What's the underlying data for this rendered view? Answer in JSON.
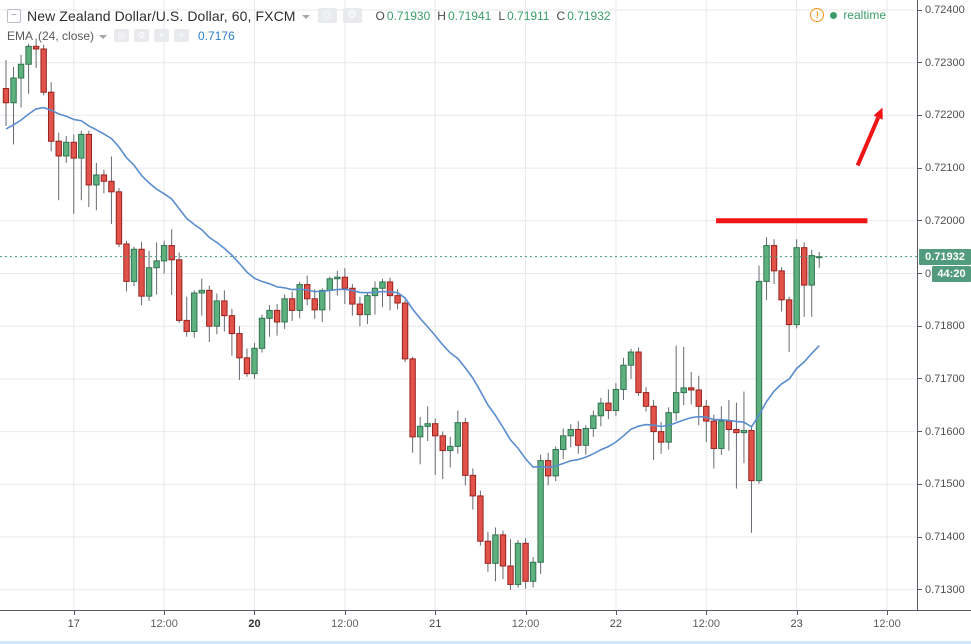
{
  "header": {
    "symbol_title": "New Zealand Dollar/U.S. Dollar, 60, FXCM",
    "ohlc": {
      "o_label": "O",
      "o": "0.71930",
      "h_label": "H",
      "h": "0.71941",
      "l_label": "L",
      "l": "0.71911",
      "c_label": "C",
      "c": "0.71932"
    },
    "realtime_label": "realtime"
  },
  "indicator": {
    "name": "EMA",
    "params": "(24, close)",
    "value": "0.7176"
  },
  "icons": {
    "collapse": "−",
    "eye": "◎",
    "gear": "⚙",
    "plus": "+",
    "close": "×",
    "warning": "!"
  },
  "chart_data": {
    "type": "candlestick",
    "title": "New Zealand Dollar/U.S. Dollar, 60, FXCM",
    "exchange": "FXCM",
    "interval_minutes": 60,
    "ylim": [
      0.71262,
      0.72419
    ],
    "grid": true,
    "price_axis_labels": [
      "0.72400",
      "0.72300",
      "0.72200",
      "0.72100",
      "0.72000",
      "0.71900",
      "0.71800",
      "0.71700",
      "0.71600",
      "0.71500",
      "0.71400",
      "0.71300"
    ],
    "time_axis": [
      {
        "label": "17",
        "bar": 9,
        "day": true,
        "bold": false
      },
      {
        "label": "12:00",
        "bar": 21,
        "day": false,
        "bold": false
      },
      {
        "label": "20",
        "bar": 33,
        "day": true,
        "bold": true
      },
      {
        "label": "12:00",
        "bar": 45,
        "day": false,
        "bold": false
      },
      {
        "label": "21",
        "bar": 57,
        "day": true,
        "bold": false
      },
      {
        "label": "12:00",
        "bar": 69,
        "day": false,
        "bold": false
      },
      {
        "label": "22",
        "bar": 81,
        "day": true,
        "bold": false
      },
      {
        "label": "12:00",
        "bar": 93,
        "day": false,
        "bold": false
      },
      {
        "label": "23",
        "bar": 105,
        "day": true,
        "bold": false
      },
      {
        "label": "12:00",
        "bar": 117,
        "day": false,
        "bold": false
      }
    ],
    "current_price": 0.71932,
    "current_price_label": "0.71932",
    "countdown": "44:20",
    "covered_axis_label": "0.71900",
    "ema": {
      "period": 24,
      "source": "close",
      "seed": 0.7217,
      "current_value": 0.7176,
      "color": "#5a8dcf"
    },
    "colors": {
      "up_fill": "#5cb17f",
      "up_border": "#33734f",
      "down_fill": "#e1524b",
      "down_border": "#99231d",
      "wick": "#666a73",
      "grid": "#e9e9eb",
      "dashed_price_line": "#459a76",
      "badge_bg": "#539b7d",
      "annotation_red": "#f01414",
      "value_green": "#3b9e6a",
      "value_blue": "#2f80c9"
    },
    "annotations": {
      "resistance_line": {
        "price": 0.72,
        "from_bar": 94.3,
        "to_bar": 114.4,
        "stroke_width": 5
      },
      "arrow_up": {
        "from": {
          "bar": 113.1,
          "price": 0.72105
        },
        "to": {
          "bar": 116.4,
          "price": 0.72215
        },
        "stroke_width": 4
      }
    },
    "candles_format": [
      "open",
      "high",
      "low",
      "close"
    ],
    "candles": [
      [
        0.72251,
        0.72305,
        0.7218,
        0.72224
      ],
      [
        0.72224,
        0.72292,
        0.72145,
        0.72271
      ],
      [
        0.72271,
        0.72315,
        0.72215,
        0.72297
      ],
      [
        0.72297,
        0.72336,
        0.72241,
        0.72331
      ],
      [
        0.72331,
        0.72346,
        0.7229,
        0.72326
      ],
      [
        0.72326,
        0.72334,
        0.72238,
        0.72244
      ],
      [
        0.72244,
        0.72263,
        0.72132,
        0.72151
      ],
      [
        0.72151,
        0.72167,
        0.72039,
        0.72123
      ],
      [
        0.72123,
        0.72161,
        0.7211,
        0.72149
      ],
      [
        0.72149,
        0.72164,
        0.72013,
        0.72119
      ],
      [
        0.72119,
        0.72171,
        0.72039,
        0.72164
      ],
      [
        0.72164,
        0.72171,
        0.72026,
        0.72068
      ],
      [
        0.72068,
        0.7211,
        0.7202,
        0.72087
      ],
      [
        0.72087,
        0.72097,
        0.72052,
        0.72075
      ],
      [
        0.72075,
        0.72122,
        0.71994,
        0.72055
      ],
      [
        0.72055,
        0.72062,
        0.7195,
        0.71956
      ],
      [
        0.71956,
        0.71962,
        0.71866,
        0.71885
      ],
      [
        0.71885,
        0.71951,
        0.71876,
        0.71946
      ],
      [
        0.71946,
        0.7196,
        0.7184,
        0.71857
      ],
      [
        0.71857,
        0.71943,
        0.71848,
        0.71911
      ],
      [
        0.71911,
        0.71959,
        0.7186,
        0.71924
      ],
      [
        0.71924,
        0.71962,
        0.719,
        0.71953
      ],
      [
        0.71953,
        0.71984,
        0.71859,
        0.71926
      ],
      [
        0.71926,
        0.7194,
        0.71806,
        0.71811
      ],
      [
        0.71811,
        0.71856,
        0.7178,
        0.7179
      ],
      [
        0.7179,
        0.71868,
        0.71778,
        0.71863
      ],
      [
        0.71863,
        0.7189,
        0.7182,
        0.71868
      ],
      [
        0.71868,
        0.71877,
        0.7177,
        0.718
      ],
      [
        0.718,
        0.71862,
        0.71785,
        0.71848
      ],
      [
        0.71848,
        0.71868,
        0.7179,
        0.7182
      ],
      [
        0.7182,
        0.71833,
        0.71744,
        0.71786
      ],
      [
        0.71786,
        0.718,
        0.71698,
        0.7174
      ],
      [
        0.7174,
        0.71758,
        0.71704,
        0.7171
      ],
      [
        0.7171,
        0.71768,
        0.717,
        0.71758
      ],
      [
        0.71758,
        0.71822,
        0.7175,
        0.71815
      ],
      [
        0.71815,
        0.7184,
        0.7178,
        0.7183
      ],
      [
        0.7183,
        0.71842,
        0.71782,
        0.71808
      ],
      [
        0.71808,
        0.7186,
        0.71795,
        0.71852
      ],
      [
        0.71852,
        0.71866,
        0.7181,
        0.7183
      ],
      [
        0.7183,
        0.71884,
        0.71815,
        0.71879
      ],
      [
        0.71879,
        0.71896,
        0.7184,
        0.71852
      ],
      [
        0.71852,
        0.7187,
        0.71814,
        0.71831
      ],
      [
        0.71831,
        0.71872,
        0.71808,
        0.71868
      ],
      [
        0.71868,
        0.71894,
        0.7183,
        0.7189
      ],
      [
        0.7189,
        0.71905,
        0.71858,
        0.71893
      ],
      [
        0.71893,
        0.7191,
        0.71842,
        0.71872
      ],
      [
        0.71872,
        0.7188,
        0.7182,
        0.71842
      ],
      [
        0.71842,
        0.71856,
        0.718,
        0.71822
      ],
      [
        0.71822,
        0.71864,
        0.71804,
        0.71858
      ],
      [
        0.71858,
        0.71885,
        0.71822,
        0.71872
      ],
      [
        0.71872,
        0.7189,
        0.71836,
        0.71884
      ],
      [
        0.71884,
        0.71892,
        0.7183,
        0.71858
      ],
      [
        0.71858,
        0.7187,
        0.71832,
        0.71844
      ],
      [
        0.71844,
        0.7185,
        0.71732,
        0.71738
      ],
      [
        0.71738,
        0.71742,
        0.7156,
        0.7159
      ],
      [
        0.7159,
        0.71628,
        0.71538,
        0.7161
      ],
      [
        0.7161,
        0.71648,
        0.71582,
        0.71615
      ],
      [
        0.71615,
        0.71625,
        0.71518,
        0.71592
      ],
      [
        0.71592,
        0.716,
        0.7151,
        0.71564
      ],
      [
        0.71564,
        0.7159,
        0.71532,
        0.71572
      ],
      [
        0.71572,
        0.7164,
        0.71558,
        0.71617
      ],
      [
        0.71617,
        0.71626,
        0.71498,
        0.71517
      ],
      [
        0.71517,
        0.7153,
        0.71452,
        0.71478
      ],
      [
        0.71478,
        0.71488,
        0.71384,
        0.71392
      ],
      [
        0.71392,
        0.7141,
        0.71334,
        0.7135
      ],
      [
        0.7135,
        0.71418,
        0.71316,
        0.71404
      ],
      [
        0.71404,
        0.71412,
        0.7132,
        0.71345
      ],
      [
        0.71345,
        0.71396,
        0.713,
        0.7131
      ],
      [
        0.7131,
        0.71394,
        0.71304,
        0.71388
      ],
      [
        0.71388,
        0.71398,
        0.71302,
        0.71316
      ],
      [
        0.71316,
        0.71362,
        0.71304,
        0.71352
      ],
      [
        0.71352,
        0.71556,
        0.7133,
        0.71545
      ],
      [
        0.71545,
        0.7156,
        0.71498,
        0.71516
      ],
      [
        0.71516,
        0.71572,
        0.71506,
        0.71566
      ],
      [
        0.71566,
        0.71606,
        0.71548,
        0.71592
      ],
      [
        0.71592,
        0.71614,
        0.7157,
        0.71604
      ],
      [
        0.71604,
        0.7162,
        0.71558,
        0.71574
      ],
      [
        0.71574,
        0.71612,
        0.71556,
        0.71606
      ],
      [
        0.71606,
        0.7164,
        0.7159,
        0.7163
      ],
      [
        0.7163,
        0.71664,
        0.7161,
        0.71654
      ],
      [
        0.71654,
        0.7168,
        0.71624,
        0.7164
      ],
      [
        0.7164,
        0.71692,
        0.7163,
        0.7168
      ],
      [
        0.7168,
        0.7174,
        0.7166,
        0.71726
      ],
      [
        0.71726,
        0.71757,
        0.717,
        0.71751
      ],
      [
        0.71751,
        0.7176,
        0.71668,
        0.71674
      ],
      [
        0.71674,
        0.71684,
        0.71638,
        0.71648
      ],
      [
        0.71648,
        0.7166,
        0.71546,
        0.716
      ],
      [
        0.716,
        0.71618,
        0.71558,
        0.7158
      ],
      [
        0.7158,
        0.71646,
        0.71566,
        0.71636
      ],
      [
        0.71636,
        0.71763,
        0.7162,
        0.71674
      ],
      [
        0.71674,
        0.71761,
        0.7165,
        0.71683
      ],
      [
        0.71683,
        0.71713,
        0.71652,
        0.71679
      ],
      [
        0.71679,
        0.71706,
        0.71612,
        0.71648
      ],
      [
        0.71648,
        0.7166,
        0.7158,
        0.7162
      ],
      [
        0.7162,
        0.71632,
        0.7153,
        0.71568
      ],
      [
        0.71568,
        0.71648,
        0.71556,
        0.7162
      ],
      [
        0.7162,
        0.7166,
        0.71564,
        0.71604
      ],
      [
        0.71604,
        0.71655,
        0.71492,
        0.71598
      ],
      [
        0.71598,
        0.71676,
        0.7154,
        0.71602
      ],
      [
        0.71602,
        0.71612,
        0.71408,
        0.71507
      ],
      [
        0.71507,
        0.71915,
        0.71501,
        0.71885
      ],
      [
        0.71885,
        0.71969,
        0.7185,
        0.71953
      ],
      [
        0.71953,
        0.71965,
        0.7188,
        0.71905
      ],
      [
        0.71905,
        0.71912,
        0.71828,
        0.7185
      ],
      [
        0.7185,
        0.71856,
        0.71751,
        0.71803
      ],
      [
        0.71803,
        0.71965,
        0.71796,
        0.71949
      ],
      [
        0.71949,
        0.71959,
        0.71818,
        0.71878
      ],
      [
        0.71878,
        0.71945,
        0.71818,
        0.71934
      ],
      [
        0.7193,
        0.71941,
        0.71911,
        0.71932
      ]
    ]
  }
}
